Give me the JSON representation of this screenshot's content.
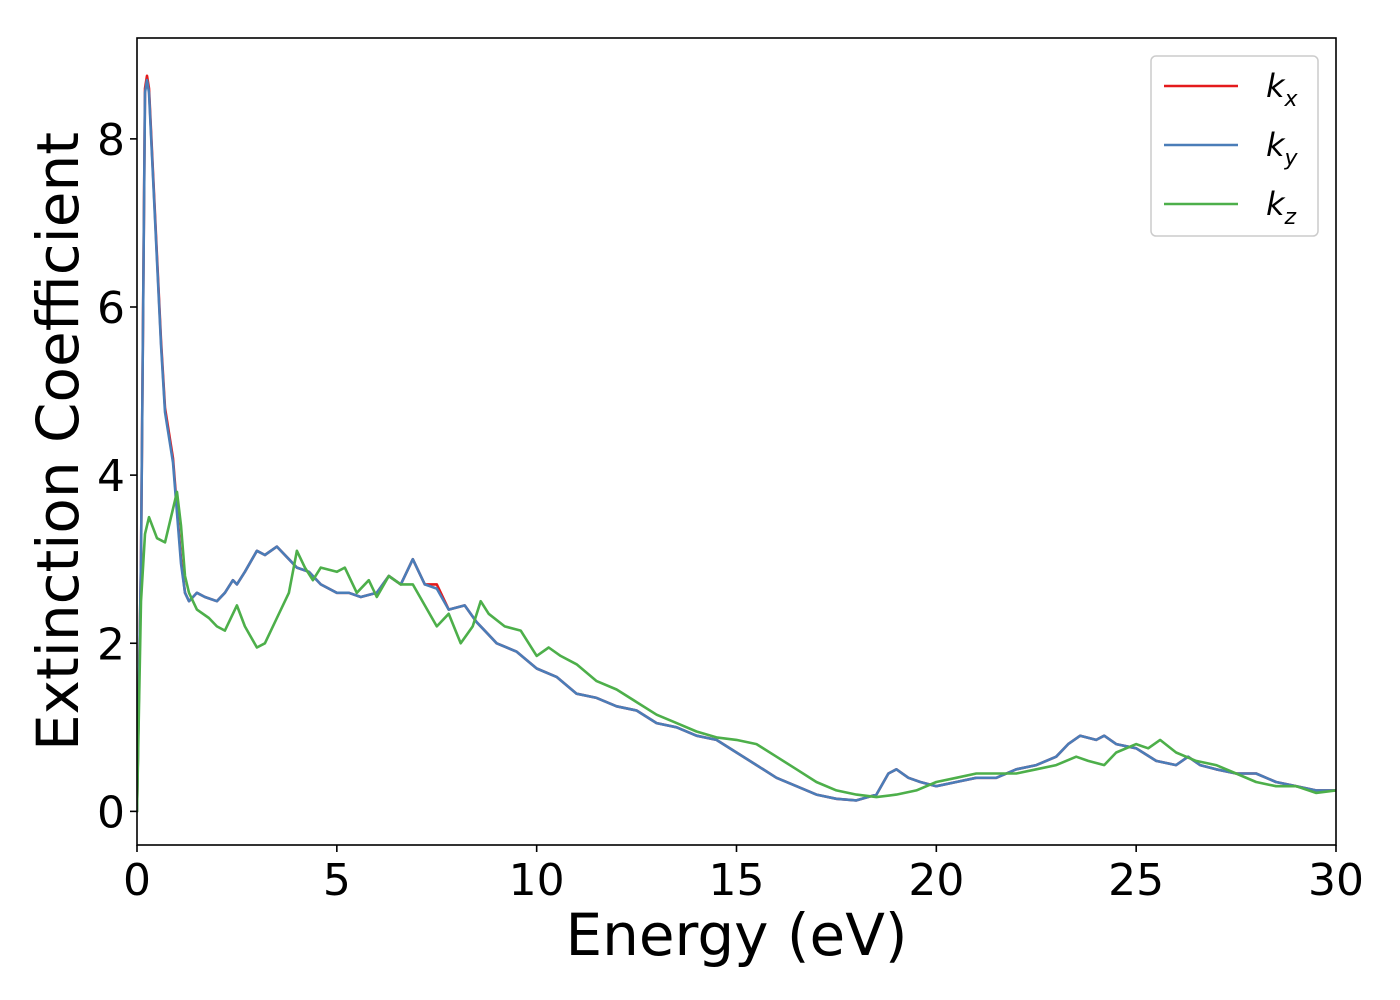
{
  "chart_data": {
    "type": "line",
    "xlabel": "Energy (eV)",
    "ylabel": "Extinction Coefficient",
    "xlim": [
      0,
      30
    ],
    "ylim": [
      -0.4,
      9.2
    ],
    "xticks": [
      0,
      5,
      10,
      15,
      20,
      25,
      30
    ],
    "xtick_labels": [
      "0",
      "5",
      "10",
      "15",
      "20",
      "25",
      "30"
    ],
    "yticks": [
      0,
      2,
      4,
      6,
      8
    ],
    "ytick_labels": [
      "0",
      "2",
      "4",
      "6",
      "8"
    ],
    "grid": false,
    "legend": "top-right",
    "series": [
      {
        "name": "kx",
        "legend_main": "k",
        "legend_sub": "x",
        "color": "#e41a1c",
        "x": [
          0,
          0.1,
          0.2,
          0.25,
          0.3,
          0.4,
          0.5,
          0.6,
          0.7,
          0.8,
          0.9,
          1.0,
          1.1,
          1.2,
          1.3,
          1.4,
          1.5,
          1.7,
          2.0,
          2.2,
          2.4,
          2.5,
          2.7,
          3.0,
          3.2,
          3.5,
          3.8,
          4.0,
          4.3,
          4.6,
          5.0,
          5.3,
          5.6,
          6.0,
          6.3,
          6.6,
          6.9,
          7.2,
          7.5,
          7.8,
          8.2,
          8.5,
          8.8,
          9.0,
          9.5,
          10.0,
          10.5,
          11.0,
          11.5,
          12.0,
          12.5,
          13.0,
          13.5,
          14.0,
          14.5,
          15.0,
          15.5,
          16.0,
          16.5,
          17.0,
          17.5,
          18.0,
          18.5,
          18.8,
          19.0,
          19.3,
          19.6,
          20.0,
          20.5,
          21.0,
          21.5,
          22.0,
          22.5,
          23.0,
          23.3,
          23.6,
          24.0,
          24.2,
          24.5,
          25.0,
          25.5,
          26.0,
          26.3,
          26.6,
          27.0,
          27.5,
          28.0,
          28.5,
          29.0,
          29.5,
          30.0
        ],
        "y": [
          0.0,
          3.0,
          8.6,
          8.75,
          8.6,
          7.6,
          6.6,
          5.6,
          4.8,
          4.5,
          4.2,
          3.6,
          3.0,
          2.6,
          2.5,
          2.55,
          2.6,
          2.55,
          2.5,
          2.6,
          2.75,
          2.7,
          2.85,
          3.1,
          3.05,
          3.15,
          3.0,
          2.9,
          2.85,
          2.7,
          2.6,
          2.6,
          2.55,
          2.6,
          2.8,
          2.7,
          3.0,
          2.7,
          2.7,
          2.4,
          2.45,
          2.25,
          2.1,
          2.0,
          1.9,
          1.7,
          1.6,
          1.4,
          1.35,
          1.25,
          1.2,
          1.05,
          1.0,
          0.9,
          0.85,
          0.7,
          0.55,
          0.4,
          0.3,
          0.2,
          0.15,
          0.13,
          0.2,
          0.45,
          0.5,
          0.4,
          0.35,
          0.3,
          0.35,
          0.4,
          0.4,
          0.5,
          0.55,
          0.65,
          0.8,
          0.9,
          0.85,
          0.9,
          0.8,
          0.75,
          0.6,
          0.55,
          0.65,
          0.55,
          0.5,
          0.45,
          0.45,
          0.35,
          0.3,
          0.25,
          0.25
        ]
      },
      {
        "name": "ky",
        "legend_main": "k",
        "legend_sub": "y",
        "color": "#4a7db8",
        "x": [
          0,
          0.1,
          0.2,
          0.25,
          0.3,
          0.4,
          0.5,
          0.6,
          0.7,
          0.8,
          0.9,
          1.0,
          1.1,
          1.2,
          1.3,
          1.4,
          1.5,
          1.7,
          2.0,
          2.2,
          2.4,
          2.5,
          2.7,
          3.0,
          3.2,
          3.5,
          3.8,
          4.0,
          4.3,
          4.6,
          5.0,
          5.3,
          5.6,
          6.0,
          6.3,
          6.6,
          6.9,
          7.2,
          7.5,
          7.8,
          8.2,
          8.5,
          8.8,
          9.0,
          9.5,
          10.0,
          10.5,
          11.0,
          11.5,
          12.0,
          12.5,
          13.0,
          13.5,
          14.0,
          14.5,
          15.0,
          15.5,
          16.0,
          16.5,
          17.0,
          17.5,
          18.0,
          18.5,
          18.8,
          19.0,
          19.3,
          19.6,
          20.0,
          20.5,
          21.0,
          21.5,
          22.0,
          22.5,
          23.0,
          23.3,
          23.6,
          24.0,
          24.2,
          24.5,
          25.0,
          25.5,
          26.0,
          26.3,
          26.6,
          27.0,
          27.5,
          28.0,
          28.5,
          29.0,
          29.5,
          30.0
        ],
        "y": [
          0.0,
          3.0,
          8.55,
          8.7,
          8.55,
          7.55,
          6.55,
          5.55,
          4.75,
          4.45,
          4.15,
          3.55,
          2.95,
          2.6,
          2.5,
          2.55,
          2.6,
          2.55,
          2.5,
          2.6,
          2.75,
          2.7,
          2.85,
          3.1,
          3.05,
          3.15,
          3.0,
          2.9,
          2.85,
          2.7,
          2.6,
          2.6,
          2.55,
          2.6,
          2.8,
          2.7,
          3.0,
          2.7,
          2.65,
          2.4,
          2.45,
          2.25,
          2.1,
          2.0,
          1.9,
          1.7,
          1.6,
          1.4,
          1.35,
          1.25,
          1.2,
          1.05,
          1.0,
          0.9,
          0.85,
          0.7,
          0.55,
          0.4,
          0.3,
          0.2,
          0.15,
          0.13,
          0.2,
          0.45,
          0.5,
          0.4,
          0.35,
          0.3,
          0.35,
          0.4,
          0.4,
          0.5,
          0.55,
          0.65,
          0.8,
          0.9,
          0.85,
          0.9,
          0.8,
          0.75,
          0.6,
          0.55,
          0.65,
          0.55,
          0.5,
          0.45,
          0.45,
          0.35,
          0.3,
          0.25,
          0.25
        ]
      },
      {
        "name": "kz",
        "legend_main": "k",
        "legend_sub": "z",
        "color": "#4daf4a",
        "x": [
          0,
          0.1,
          0.2,
          0.3,
          0.5,
          0.7,
          0.9,
          1.0,
          1.1,
          1.2,
          1.3,
          1.5,
          1.8,
          2.0,
          2.2,
          2.5,
          2.7,
          3.0,
          3.2,
          3.5,
          3.8,
          4.0,
          4.2,
          4.4,
          4.6,
          5.0,
          5.2,
          5.5,
          5.8,
          6.0,
          6.3,
          6.6,
          6.9,
          7.2,
          7.5,
          7.8,
          8.1,
          8.4,
          8.6,
          8.8,
          9.2,
          9.6,
          10.0,
          10.3,
          10.6,
          11.0,
          11.5,
          12.0,
          12.5,
          13.0,
          13.5,
          14.0,
          14.5,
          15.0,
          15.5,
          16.0,
          16.5,
          17.0,
          17.5,
          18.0,
          18.5,
          19.0,
          19.5,
          20.0,
          20.5,
          21.0,
          21.5,
          22.0,
          22.5,
          23.0,
          23.5,
          23.8,
          24.2,
          24.5,
          25.0,
          25.3,
          25.6,
          26.0,
          26.5,
          27.0,
          27.5,
          28.0,
          28.5,
          29.0,
          29.5,
          30.0
        ],
        "y": [
          0.0,
          2.5,
          3.3,
          3.5,
          3.25,
          3.2,
          3.6,
          3.8,
          3.4,
          2.8,
          2.6,
          2.4,
          2.3,
          2.2,
          2.15,
          2.45,
          2.2,
          1.95,
          2.0,
          2.3,
          2.6,
          3.1,
          2.9,
          2.75,
          2.9,
          2.85,
          2.9,
          2.6,
          2.75,
          2.55,
          2.8,
          2.7,
          2.7,
          2.45,
          2.2,
          2.35,
          2.0,
          2.2,
          2.5,
          2.35,
          2.2,
          2.15,
          1.85,
          1.95,
          1.85,
          1.75,
          1.55,
          1.45,
          1.3,
          1.15,
          1.05,
          0.95,
          0.88,
          0.85,
          0.8,
          0.65,
          0.5,
          0.35,
          0.25,
          0.2,
          0.17,
          0.2,
          0.25,
          0.35,
          0.4,
          0.45,
          0.45,
          0.45,
          0.5,
          0.55,
          0.65,
          0.6,
          0.55,
          0.7,
          0.8,
          0.75,
          0.85,
          0.7,
          0.6,
          0.55,
          0.45,
          0.35,
          0.3,
          0.3,
          0.22,
          0.25
        ]
      }
    ]
  }
}
